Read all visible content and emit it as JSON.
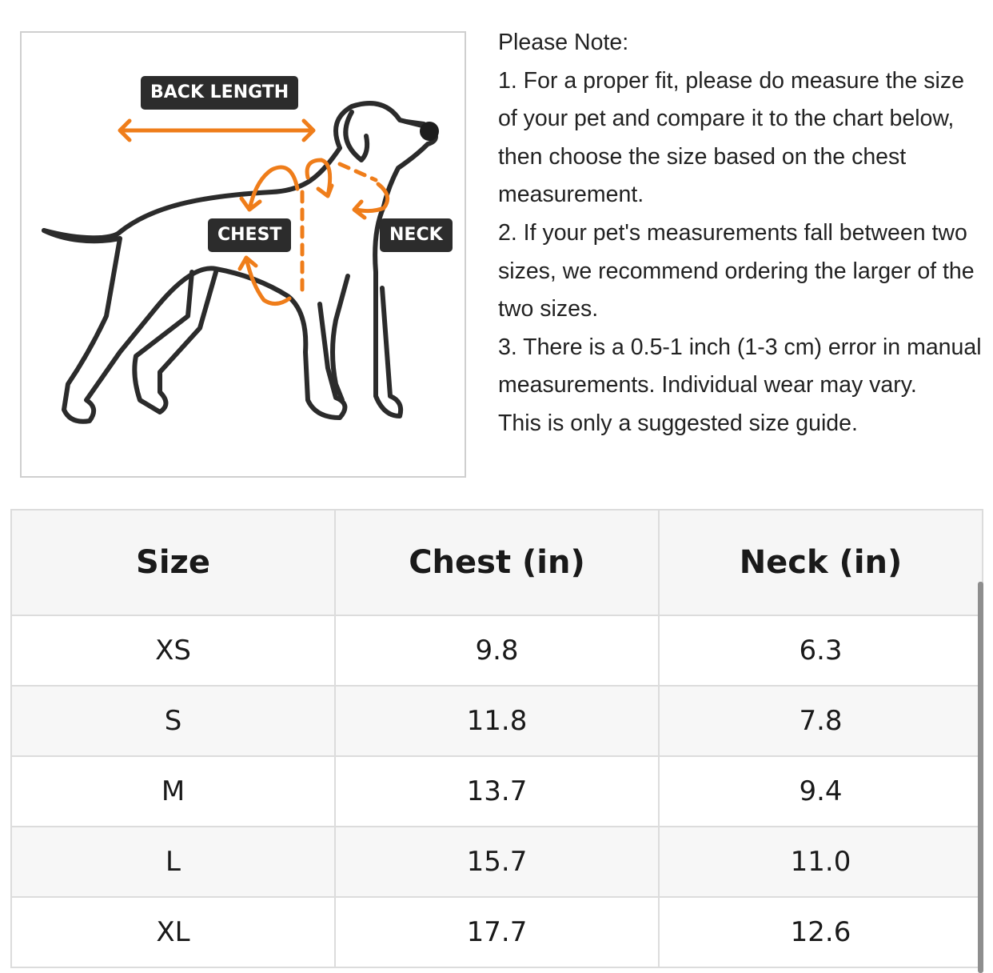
{
  "diagram": {
    "labels": {
      "back_length": "BACK LENGTH",
      "chest": "CHEST",
      "neck": "NECK"
    },
    "colors": {
      "arrow": "#ef7d1a",
      "outline": "#2b2b2b",
      "label_bg": "#2c2c2c"
    }
  },
  "notes": {
    "heading": "Please Note:",
    "items": [
      "1. For a proper fit, please do measure the size of your pet and compare it to the chart below, then choose the size based on the chest measurement.",
      "2. If your pet's measurements fall between two sizes, we recommend ordering the larger of the two sizes.",
      "3. There is a 0.5-1 inch (1-3 cm) error in manual measurements. Individual wear may vary.",
      "This is only a suggested size guide."
    ]
  },
  "table": {
    "headers": [
      "Size",
      "Chest (in)",
      "Neck (in)"
    ],
    "rows": [
      [
        "XS",
        "9.8",
        "6.3"
      ],
      [
        "S",
        "11.8",
        "7.8"
      ],
      [
        "M",
        "13.7",
        "9.4"
      ],
      [
        "L",
        "15.7",
        "11.0"
      ],
      [
        "XL",
        "17.7",
        "12.6"
      ]
    ]
  }
}
